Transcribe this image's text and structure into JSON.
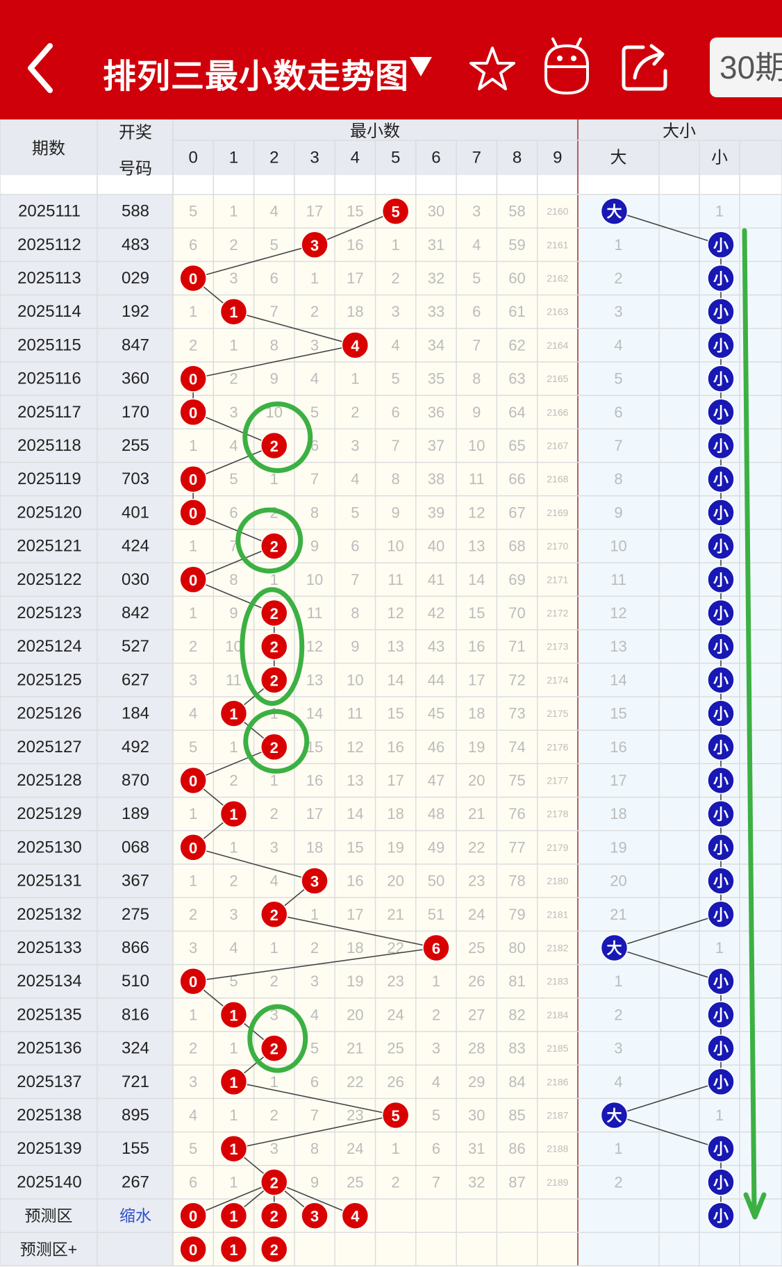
{
  "header": {
    "title": "排列三最小数走势图",
    "dropdown_icon": "triangle-down-icon",
    "back_icon": "chevron-left-icon",
    "favorite_icon": "star-icon",
    "robot_icon": "robot-icon",
    "share_icon": "share-icon",
    "period_label": "30期"
  },
  "table": {
    "col_period": "期数",
    "col_number_1": "开奖",
    "col_number_2": "号码",
    "group_min": "最小数",
    "group_size": "大小",
    "digits": [
      "0",
      "1",
      "2",
      "3",
      "4",
      "5",
      "6",
      "7",
      "8",
      "9"
    ],
    "size_big": "大",
    "size_small": "小",
    "rows": [
      {
        "period": "2025111",
        "number": "588",
        "min": 5,
        "misses": [
          "5",
          "1",
          "4",
          "17",
          "15",
          "",
          "30",
          "3",
          "58",
          "2160"
        ],
        "size": "big",
        "size_misses": [
          "",
          "1"
        ]
      },
      {
        "period": "2025112",
        "number": "483",
        "min": 3,
        "misses": [
          "6",
          "2",
          "5",
          "",
          "16",
          "1",
          "31",
          "4",
          "59",
          "2161"
        ],
        "size": "small",
        "size_misses": [
          "1",
          ""
        ]
      },
      {
        "period": "2025113",
        "number": "029",
        "min": 0,
        "misses": [
          "",
          "3",
          "6",
          "1",
          "17",
          "2",
          "32",
          "5",
          "60",
          "2162"
        ],
        "size": "small",
        "size_misses": [
          "2",
          ""
        ]
      },
      {
        "period": "2025114",
        "number": "192",
        "min": 1,
        "misses": [
          "1",
          "",
          "7",
          "2",
          "18",
          "3",
          "33",
          "6",
          "61",
          "2163"
        ],
        "size": "small",
        "size_misses": [
          "3",
          ""
        ]
      },
      {
        "period": "2025115",
        "number": "847",
        "min": 4,
        "misses": [
          "2",
          "1",
          "8",
          "3",
          "",
          "4",
          "34",
          "7",
          "62",
          "2164"
        ],
        "size": "small",
        "size_misses": [
          "4",
          ""
        ]
      },
      {
        "period": "2025116",
        "number": "360",
        "min": 0,
        "misses": [
          "",
          "2",
          "9",
          "4",
          "1",
          "5",
          "35",
          "8",
          "63",
          "2165"
        ],
        "size": "small",
        "size_misses": [
          "5",
          ""
        ]
      },
      {
        "period": "2025117",
        "number": "170",
        "min": 0,
        "misses": [
          "",
          "3",
          "10",
          "5",
          "2",
          "6",
          "36",
          "9",
          "64",
          "2166"
        ],
        "size": "small",
        "size_misses": [
          "6",
          ""
        ]
      },
      {
        "period": "2025118",
        "number": "255",
        "min": 2,
        "misses": [
          "1",
          "4",
          "",
          "6",
          "3",
          "7",
          "37",
          "10",
          "65",
          "2167"
        ],
        "size": "small",
        "size_misses": [
          "7",
          ""
        ]
      },
      {
        "period": "2025119",
        "number": "703",
        "min": 0,
        "misses": [
          "",
          "5",
          "1",
          "7",
          "4",
          "8",
          "38",
          "11",
          "66",
          "2168"
        ],
        "size": "small",
        "size_misses": [
          "8",
          ""
        ]
      },
      {
        "period": "2025120",
        "number": "401",
        "min": 0,
        "misses": [
          "",
          "6",
          "2",
          "8",
          "5",
          "9",
          "39",
          "12",
          "67",
          "2169"
        ],
        "size": "small",
        "size_misses": [
          "9",
          ""
        ]
      },
      {
        "period": "2025121",
        "number": "424",
        "min": 2,
        "misses": [
          "1",
          "7",
          "",
          "9",
          "6",
          "10",
          "40",
          "13",
          "68",
          "2170"
        ],
        "size": "small",
        "size_misses": [
          "10",
          ""
        ]
      },
      {
        "period": "2025122",
        "number": "030",
        "min": 0,
        "misses": [
          "",
          "8",
          "1",
          "10",
          "7",
          "11",
          "41",
          "14",
          "69",
          "2171"
        ],
        "size": "small",
        "size_misses": [
          "11",
          ""
        ]
      },
      {
        "period": "2025123",
        "number": "842",
        "min": 2,
        "misses": [
          "1",
          "9",
          "",
          "11",
          "8",
          "12",
          "42",
          "15",
          "70",
          "2172"
        ],
        "size": "small",
        "size_misses": [
          "12",
          ""
        ]
      },
      {
        "period": "2025124",
        "number": "527",
        "min": 2,
        "misses": [
          "2",
          "10",
          "",
          "12",
          "9",
          "13",
          "43",
          "16",
          "71",
          "2173"
        ],
        "size": "small",
        "size_misses": [
          "13",
          ""
        ]
      },
      {
        "period": "2025125",
        "number": "627",
        "min": 2,
        "misses": [
          "3",
          "11",
          "",
          "13",
          "10",
          "14",
          "44",
          "17",
          "72",
          "2174"
        ],
        "size": "small",
        "size_misses": [
          "14",
          ""
        ]
      },
      {
        "period": "2025126",
        "number": "184",
        "min": 1,
        "misses": [
          "4",
          "",
          "1",
          "14",
          "11",
          "15",
          "45",
          "18",
          "73",
          "2175"
        ],
        "size": "small",
        "size_misses": [
          "15",
          ""
        ]
      },
      {
        "period": "2025127",
        "number": "492",
        "min": 2,
        "misses": [
          "5",
          "1",
          "",
          "15",
          "12",
          "16",
          "46",
          "19",
          "74",
          "2176"
        ],
        "size": "small",
        "size_misses": [
          "16",
          ""
        ]
      },
      {
        "period": "2025128",
        "number": "870",
        "min": 0,
        "misses": [
          "",
          "2",
          "1",
          "16",
          "13",
          "17",
          "47",
          "20",
          "75",
          "2177"
        ],
        "size": "small",
        "size_misses": [
          "17",
          ""
        ]
      },
      {
        "period": "2025129",
        "number": "189",
        "min": 1,
        "misses": [
          "1",
          "",
          "2",
          "17",
          "14",
          "18",
          "48",
          "21",
          "76",
          "2178"
        ],
        "size": "small",
        "size_misses": [
          "18",
          ""
        ]
      },
      {
        "period": "2025130",
        "number": "068",
        "min": 0,
        "misses": [
          "",
          "1",
          "3",
          "18",
          "15",
          "19",
          "49",
          "22",
          "77",
          "2179"
        ],
        "size": "small",
        "size_misses": [
          "19",
          ""
        ]
      },
      {
        "period": "2025131",
        "number": "367",
        "min": 3,
        "misses": [
          "1",
          "2",
          "4",
          "",
          "16",
          "20",
          "50",
          "23",
          "78",
          "2180"
        ],
        "size": "small",
        "size_misses": [
          "20",
          ""
        ]
      },
      {
        "period": "2025132",
        "number": "275",
        "min": 2,
        "misses": [
          "2",
          "3",
          "",
          "1",
          "17",
          "21",
          "51",
          "24",
          "79",
          "2181"
        ],
        "size": "small",
        "size_misses": [
          "21",
          ""
        ]
      },
      {
        "period": "2025133",
        "number": "866",
        "min": 6,
        "misses": [
          "3",
          "4",
          "1",
          "2",
          "18",
          "22",
          "",
          "25",
          "80",
          "2182"
        ],
        "size": "big",
        "size_misses": [
          "",
          "1"
        ]
      },
      {
        "period": "2025134",
        "number": "510",
        "min": 0,
        "misses": [
          "",
          "5",
          "2",
          "3",
          "19",
          "23",
          "1",
          "26",
          "81",
          "2183"
        ],
        "size": "small",
        "size_misses": [
          "1",
          ""
        ]
      },
      {
        "period": "2025135",
        "number": "816",
        "min": 1,
        "misses": [
          "1",
          "",
          "3",
          "4",
          "20",
          "24",
          "2",
          "27",
          "82",
          "2184"
        ],
        "size": "small",
        "size_misses": [
          "2",
          ""
        ]
      },
      {
        "period": "2025136",
        "number": "324",
        "min": 2,
        "misses": [
          "2",
          "1",
          "",
          "5",
          "21",
          "25",
          "3",
          "28",
          "83",
          "2185"
        ],
        "size": "small",
        "size_misses": [
          "3",
          ""
        ]
      },
      {
        "period": "2025137",
        "number": "721",
        "min": 1,
        "misses": [
          "3",
          "",
          "1",
          "6",
          "22",
          "26",
          "4",
          "29",
          "84",
          "2186"
        ],
        "size": "small",
        "size_misses": [
          "4",
          ""
        ]
      },
      {
        "period": "2025138",
        "number": "895",
        "min": 5,
        "misses": [
          "4",
          "1",
          "2",
          "7",
          "23",
          "",
          "5",
          "30",
          "85",
          "2187"
        ],
        "size": "big",
        "size_misses": [
          "",
          "1"
        ]
      },
      {
        "period": "2025139",
        "number": "155",
        "min": 1,
        "misses": [
          "5",
          "",
          "3",
          "8",
          "24",
          "1",
          "6",
          "31",
          "86",
          "2188"
        ],
        "size": "small",
        "size_misses": [
          "1",
          ""
        ]
      },
      {
        "period": "2025140",
        "number": "267",
        "min": 2,
        "misses": [
          "6",
          "1",
          "",
          "9",
          "25",
          "2",
          "7",
          "32",
          "87",
          "2189"
        ],
        "size": "small",
        "size_misses": [
          "2",
          ""
        ]
      }
    ],
    "predict": {
      "label": "预测区",
      "number": "缩水",
      "balls": [
        "0",
        "1",
        "2",
        "3",
        "4"
      ],
      "size": "small"
    },
    "predict_plus": {
      "label": "预测区+",
      "balls": [
        "0",
        "1",
        "2"
      ]
    }
  },
  "colors": {
    "header_red": "#d0000a",
    "ball_red": "#d90000",
    "ball_blue": "#1818b4",
    "annotation_green": "#3cb043",
    "grid_line": "#dcdcdc",
    "miss_text": "#bbbbbb"
  }
}
